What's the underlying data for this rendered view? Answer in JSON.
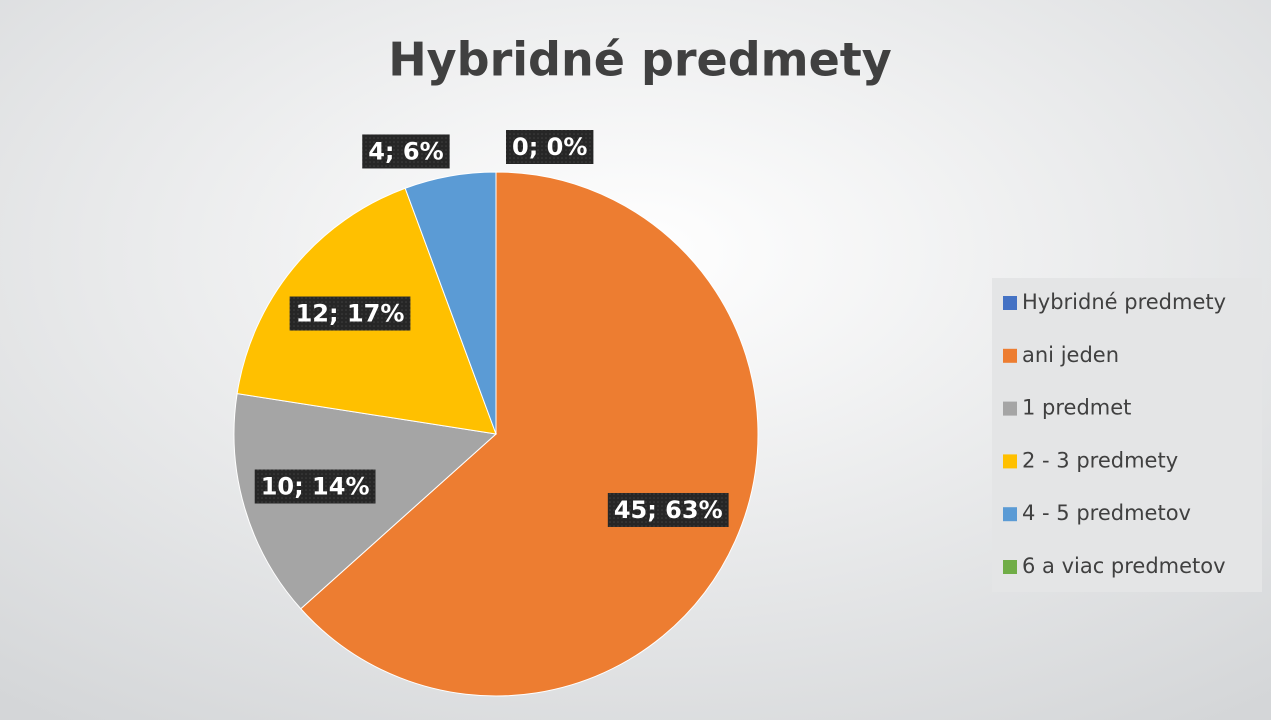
{
  "chart_data": {
    "type": "pie",
    "title": "Hybridné predmety",
    "categories": [
      "Hybridné predmety",
      "ani jeden",
      "1 predmet",
      "2 - 3 predmety",
      "4 - 5 predmetov",
      "6 a viac predmetov"
    ],
    "values": [
      null,
      45,
      10,
      12,
      4,
      0
    ],
    "value_labels": [
      null,
      "45; 63%",
      "10; 14%",
      "12; 17%",
      "4; 6%",
      "0; 0%"
    ],
    "colors": [
      "#4472c4",
      "#ed7d31",
      "#a5a5a5",
      "#ffc000",
      "#5b9bd5",
      "#70ad47"
    ],
    "legend": "right"
  }
}
